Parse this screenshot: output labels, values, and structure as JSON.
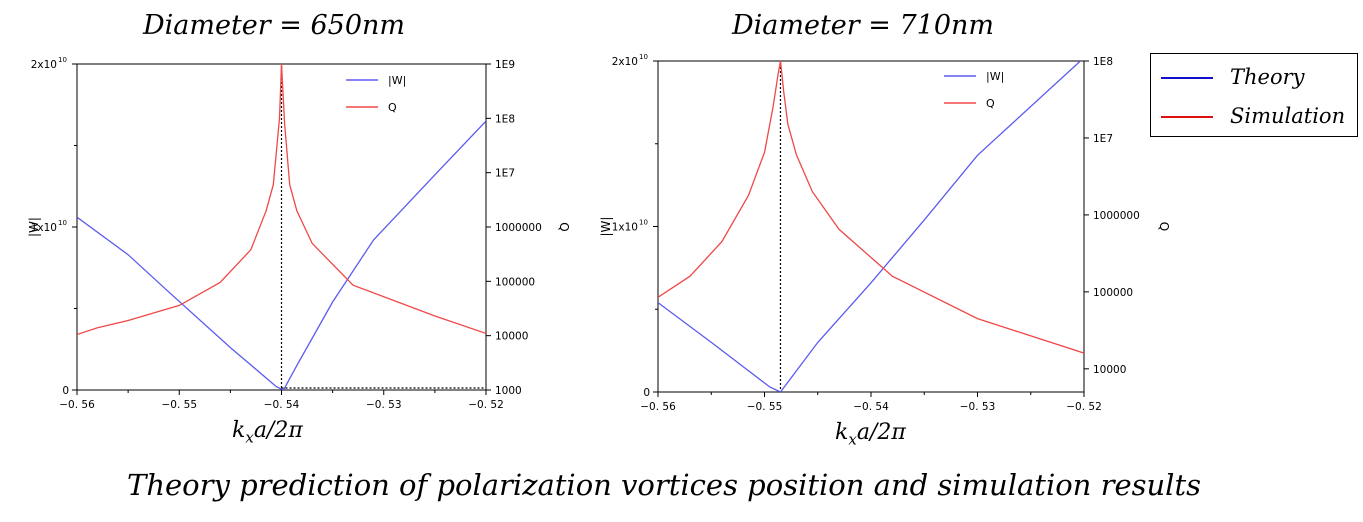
{
  "chart_data": [
    {
      "type": "line",
      "title": "Diameter = 650nm",
      "xlabel": "k_x a/2π",
      "ylabel": "|W|",
      "y2label": "Q",
      "xlim": [
        -0.56,
        -0.52
      ],
      "ylim": [
        0,
        20000000000.0
      ],
      "y2lim": [
        1000,
        1000000000.0
      ],
      "y2scale": "log",
      "xticks": [
        -0.56,
        -0.55,
        -0.54,
        -0.53,
        -0.52
      ],
      "xtick_labels": [
        "−0. 56",
        "−0. 55",
        "−0. 54",
        "−0. 53",
        "−0. 52"
      ],
      "yticks": [
        0,
        10000000000.0,
        20000000000.0
      ],
      "ytick_labels": [
        "0",
        "1x10",
        "2x10"
      ],
      "ytick_exp": [
        "",
        "10",
        "10"
      ],
      "y2ticks": [
        1000,
        10000,
        100000,
        1000000,
        10000000,
        100000000,
        1000000000
      ],
      "y2tick_labels": [
        "1000",
        "10000",
        "100000",
        "1000000",
        "1E7",
        "1E8",
        "1E9"
      ],
      "vline_x": -0.54,
      "legend_position": "top-right",
      "series": [
        {
          "name": "|W|",
          "color": "#5b5bf0",
          "axis": "left",
          "x": [
            -0.56,
            -0.555,
            -0.551,
            -0.545,
            -0.5405,
            -0.5398,
            -0.5385,
            -0.535,
            -0.531,
            -0.525,
            -0.52
          ],
          "y": [
            10600000000.0,
            8300000000.0,
            6000000000.0,
            2600000000.0,
            200000000.0,
            0.0,
            1500000000.0,
            5400000000.0,
            9200000000.0,
            13200000000.0,
            16500000000.0
          ]
        },
        {
          "name": "Q",
          "color": "#f04848",
          "axis": "right",
          "x": [
            -0.56,
            -0.558,
            -0.555,
            -0.55,
            -0.546,
            -0.543,
            -0.5415,
            -0.5408,
            -0.5402,
            -0.54,
            -0.5397,
            -0.5392,
            -0.5385,
            -0.537,
            -0.533,
            -0.525,
            -0.52
          ],
          "y": [
            10500,
            14000,
            19000,
            36000,
            95000,
            380000,
            2000000,
            6000000,
            100000000,
            1000000000,
            80000000,
            6000000,
            2000000,
            500000,
            85000,
            23000,
            11000
          ]
        }
      ]
    },
    {
      "type": "line",
      "title": "Diameter = 710nm",
      "xlabel": "k_x a/2π",
      "ylabel": "|W|",
      "y2label": "Q",
      "xlim": [
        -0.56,
        -0.52
      ],
      "ylim": [
        0,
        20000000000.0
      ],
      "y2lim": [
        5000,
        100000000.0
      ],
      "y2scale": "log",
      "xticks": [
        -0.56,
        -0.55,
        -0.54,
        -0.53,
        -0.52
      ],
      "xtick_labels": [
        "−0. 56",
        "−0. 55",
        "−0. 54",
        "−0. 53",
        "−0. 52"
      ],
      "yticks": [
        0,
        10000000000.0,
        20000000000.0
      ],
      "ytick_labels": [
        "0",
        "1x10",
        "2x10"
      ],
      "ytick_exp": [
        "",
        "10",
        "10"
      ],
      "y2ticks": [
        10000,
        100000,
        1000000,
        10000000,
        100000000
      ],
      "y2tick_labels": [
        "10000",
        "100000",
        "1000000",
        "1E7",
        "1E8"
      ],
      "vline_x": -0.5485,
      "legend_position": "top-right",
      "series": [
        {
          "name": "|W|",
          "color": "#5b5bf0",
          "axis": "left",
          "x": [
            -0.56,
            -0.555,
            -0.5495,
            -0.5485,
            -0.545,
            -0.54,
            -0.535,
            -0.53,
            -0.52
          ],
          "y": [
            5400000000.0,
            3000000000.0,
            300000000.0,
            0.0,
            3000000000.0,
            6600000000.0,
            10400000000.0,
            14300000000.0,
            20200000000.0
          ]
        },
        {
          "name": "Q",
          "color": "#f04848",
          "axis": "right",
          "x": [
            -0.56,
            -0.557,
            -0.554,
            -0.5515,
            -0.55,
            -0.5492,
            -0.5487,
            -0.5485,
            -0.5482,
            -0.5478,
            -0.547,
            -0.5455,
            -0.543,
            -0.538,
            -0.53,
            -0.52
          ],
          "y": [
            85000,
            160000,
            450000,
            1800000,
            6500000,
            25000000,
            70000000,
            100000000,
            40000000,
            15000000,
            6000000,
            2000000,
            650000,
            160000,
            45000,
            16000
          ]
        }
      ]
    }
  ],
  "legend_box": {
    "items": [
      {
        "label": "Theory",
        "color": "#1010cc"
      },
      {
        "label": "Simulation",
        "color": "#dd1010"
      }
    ]
  },
  "xlabel_text": {
    "main": "k",
    "sub": "x",
    "rest": "a/2π"
  },
  "caption": "Theory prediction of polarization vortices position and simulation results"
}
